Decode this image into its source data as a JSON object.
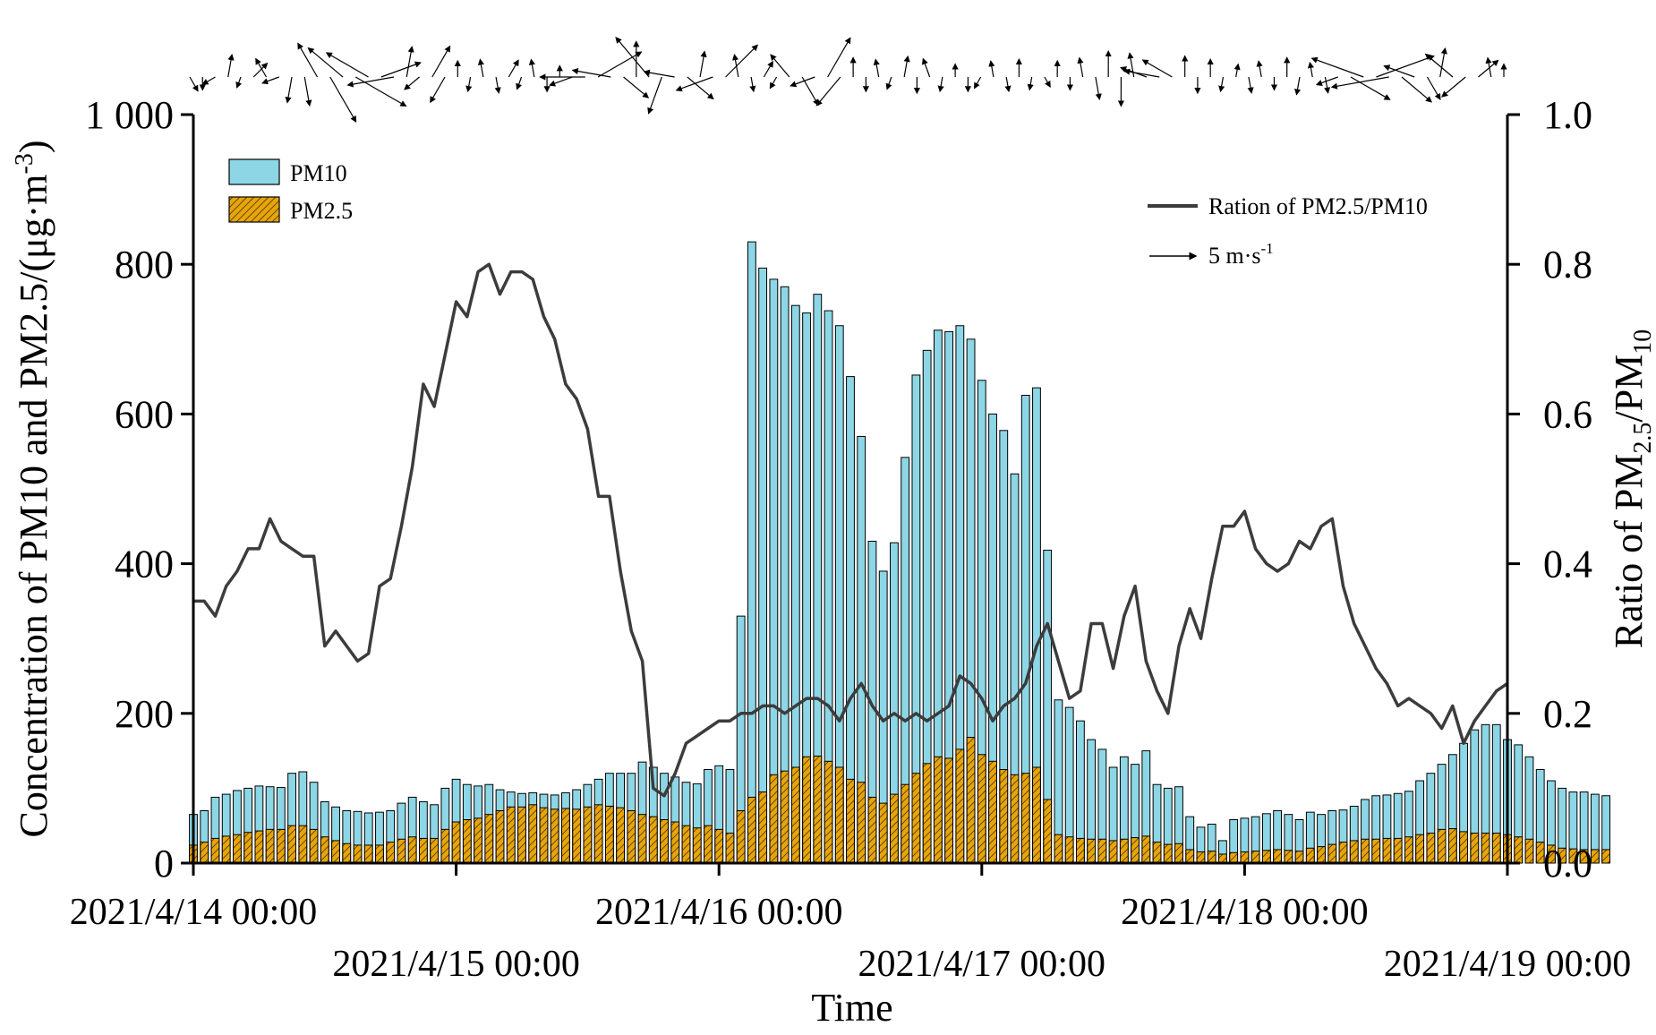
{
  "chart_data": {
    "type": "bar",
    "xlabel": "Time",
    "ylabel": "Concentration of PM10 and PM2.5/(μg·m⁻³)",
    "ylabel_parts": {
      "main": "Concentration of PM10 and PM2.5/(μg·m",
      "sup": "-3",
      "close": ")"
    },
    "y2label_parts": {
      "prefix": "Ratio of PM",
      "sub1": "2.5",
      "mid": "/PM",
      "sub2": "10"
    },
    "ylim": [
      0,
      1000
    ],
    "y2lim": [
      0,
      1.0
    ],
    "yticks": [
      "0",
      "200",
      "400",
      "600",
      "800",
      "1 000"
    ],
    "y2ticks": [
      "0.0",
      "0.2",
      "0.4",
      "0.6",
      "0.8",
      "1.0"
    ],
    "xlim_hours": [
      0,
      120
    ],
    "xtick_labels": [
      "2021/4/14 00:00",
      "2021/4/15 00:00",
      "2021/4/16 00:00",
      "2021/4/17 00:00",
      "2021/4/18 00:00",
      "2021/4/19 00:00"
    ],
    "legend": {
      "pm10": "PM10",
      "pm25": "PM2.5",
      "ratio": "Ration of PM2.5/PM10",
      "wind": "5 m·s",
      "wind_sup": "-1"
    },
    "colors": {
      "pm10": "#8dd6e6",
      "pm25": "#e6a50a",
      "ratio": "#3c3c3c"
    },
    "series": [
      {
        "name": "PM10",
        "values": [
          65,
          70,
          88,
          92,
          97,
          100,
          103,
          102,
          101,
          120,
          122,
          108,
          82,
          75,
          70,
          69,
          67,
          68,
          70,
          80,
          88,
          82,
          78,
          100,
          112,
          105,
          103,
          105,
          98,
          95,
          93,
          94,
          92,
          91,
          94,
          98,
          105,
          112,
          120,
          120,
          120,
          135,
          128,
          120,
          115,
          108,
          106,
          125,
          130,
          125,
          330,
          830,
          795,
          780,
          770,
          745,
          735,
          760,
          738,
          718,
          650,
          570,
          430,
          390,
          428,
          542,
          652,
          685,
          712,
          710,
          718,
          700,
          645,
          600,
          578,
          520,
          625,
          635,
          418,
          218,
          208,
          190,
          165,
          152,
          128,
          142,
          132,
          150,
          105,
          100,
          102,
          62,
          48,
          52,
          30,
          58,
          60,
          62,
          66,
          70,
          65,
          58,
          68,
          65,
          70,
          71,
          76,
          85,
          90,
          91,
          93,
          96,
          110,
          120,
          132,
          145,
          160,
          178,
          185,
          185,
          165,
          158,
          142,
          125,
          110,
          100,
          95,
          95,
          92,
          90
        ]
      },
      {
        "name": "PM2.5",
        "values": [
          24,
          28,
          33,
          36,
          38,
          41,
          43,
          45,
          45,
          50,
          50,
          45,
          35,
          30,
          26,
          24,
          24,
          24,
          28,
          32,
          35,
          33,
          33,
          45,
          55,
          58,
          60,
          65,
          70,
          75,
          75,
          78,
          74,
          72,
          73,
          72,
          75,
          78,
          76,
          74,
          70,
          65,
          62,
          58,
          55,
          50,
          47,
          50,
          45,
          40,
          70,
          88,
          95,
          118,
          123,
          128,
          142,
          143,
          136,
          128,
          112,
          108,
          88,
          80,
          92,
          105,
          120,
          133,
          142,
          140,
          152,
          168,
          145,
          136,
          125,
          118,
          120,
          128,
          85,
          38,
          35,
          33,
          32,
          32,
          30,
          32,
          34,
          36,
          28,
          25,
          26,
          18,
          15,
          16,
          12,
          14,
          15,
          16,
          17,
          18,
          17,
          16,
          20,
          22,
          25,
          28,
          30,
          32,
          32,
          33,
          33,
          35,
          38,
          40,
          45,
          46,
          42,
          40,
          40,
          40,
          38,
          35,
          32,
          28,
          24,
          20,
          19,
          18,
          18,
          18
        ]
      },
      {
        "name": "Ration of PM2.5/PM10",
        "values": [
          0.35,
          0.35,
          0.33,
          0.37,
          0.39,
          0.42,
          0.42,
          0.46,
          0.43,
          0.42,
          0.41,
          0.41,
          0.29,
          0.31,
          0.29,
          0.27,
          0.28,
          0.37,
          0.38,
          0.45,
          0.53,
          0.64,
          0.61,
          0.68,
          0.75,
          0.73,
          0.79,
          0.8,
          0.76,
          0.79,
          0.79,
          0.78,
          0.73,
          0.7,
          0.64,
          0.62,
          0.58,
          0.49,
          0.49,
          0.39,
          0.31,
          0.27,
          0.1,
          0.09,
          0.12,
          0.16,
          0.17,
          0.18,
          0.19,
          0.19,
          0.2,
          0.2,
          0.21,
          0.21,
          0.2,
          0.21,
          0.22,
          0.22,
          0.21,
          0.19,
          0.22,
          0.24,
          0.21,
          0.19,
          0.2,
          0.19,
          0.2,
          0.19,
          0.2,
          0.21,
          0.25,
          0.24,
          0.22,
          0.19,
          0.21,
          0.22,
          0.24,
          0.29,
          0.32,
          0.27,
          0.22,
          0.23,
          0.32,
          0.32,
          0.26,
          0.33,
          0.37,
          0.27,
          0.23,
          0.2,
          0.29,
          0.34,
          0.3,
          0.38,
          0.45,
          0.45,
          0.47,
          0.42,
          0.4,
          0.39,
          0.4,
          0.43,
          0.42,
          0.45,
          0.46,
          0.37,
          0.32,
          0.29,
          0.26,
          0.24,
          0.21,
          0.22,
          0.21,
          0.2,
          0.18,
          0.21,
          0.16,
          0.19,
          0.21,
          0.23,
          0.24
        ]
      }
    ],
    "wind_vectors": [
      {
        "h": 0,
        "dir": 300,
        "speed": 1.0
      },
      {
        "h": 1,
        "dir": 270,
        "speed": 0.8
      },
      {
        "h": 2,
        "dir": 210,
        "speed": 0.9
      },
      {
        "h": 3,
        "dir": 80,
        "speed": 1.4
      },
      {
        "h": 4,
        "dir": 250,
        "speed": 0.7
      },
      {
        "h": 5,
        "dir": 45,
        "speed": 1.2
      },
      {
        "h": 6,
        "dir": 120,
        "speed": 1.3
      },
      {
        "h": 7,
        "dir": 200,
        "speed": 1.1
      },
      {
        "h": 8,
        "dir": 260,
        "speed": 1.6
      },
      {
        "h": 9,
        "dir": 280,
        "speed": 1.8
      },
      {
        "h": 10,
        "dir": 120,
        "speed": 2.4
      },
      {
        "h": 11,
        "dir": 300,
        "speed": 3.2
      },
      {
        "h": 12,
        "dir": 140,
        "speed": 2.8
      },
      {
        "h": 13,
        "dir": 330,
        "speed": 3.6
      },
      {
        "h": 14,
        "dir": 150,
        "speed": 3.0
      },
      {
        "h": 15,
        "dir": 20,
        "speed": 2.6
      },
      {
        "h": 16,
        "dir": 190,
        "speed": 2.9
      },
      {
        "h": 17,
        "dir": 80,
        "speed": 1.9
      },
      {
        "h": 18,
        "dir": 220,
        "speed": 1.2
      },
      {
        "h": 19,
        "dir": 60,
        "speed": 2.2
      },
      {
        "h": 20,
        "dir": 240,
        "speed": 1.8
      },
      {
        "h": 21,
        "dir": 90,
        "speed": 1.0
      },
      {
        "h": 22,
        "dir": 260,
        "speed": 0.9
      },
      {
        "h": 23,
        "dir": 100,
        "speed": 1.1
      },
      {
        "h": 24,
        "dir": 280,
        "speed": 1.0
      },
      {
        "h": 25,
        "dir": 60,
        "speed": 1.2
      },
      {
        "h": 26,
        "dir": 250,
        "speed": 0.8
      },
      {
        "h": 27,
        "dir": 100,
        "speed": 1.1
      },
      {
        "h": 28,
        "dir": 270,
        "speed": 0.9
      },
      {
        "h": 29,
        "dir": 90,
        "speed": 0.7
      },
      {
        "h": 30,
        "dir": 200,
        "speed": 1.5
      },
      {
        "h": 31,
        "dir": 180,
        "speed": 2.8
      },
      {
        "h": 32,
        "dir": 30,
        "speed": 3.1
      },
      {
        "h": 33,
        "dir": 170,
        "speed": 2.4
      },
      {
        "h": 34,
        "dir": 320,
        "speed": 2.0
      },
      {
        "h": 35,
        "dir": 90,
        "speed": 2.2
      },
      {
        "h": 36,
        "dir": 130,
        "speed": 3.2
      },
      {
        "h": 37,
        "dir": 250,
        "speed": 2.4
      },
      {
        "h": 38,
        "dir": 170,
        "speed": 1.9
      },
      {
        "h": 39,
        "dir": 320,
        "speed": 2.1
      },
      {
        "h": 40,
        "dir": 80,
        "speed": 1.6
      },
      {
        "h": 41,
        "dir": 200,
        "speed": 2.4
      },
      {
        "h": 42,
        "dir": 45,
        "speed": 2.8
      },
      {
        "h": 43,
        "dir": 100,
        "speed": 1.4
      },
      {
        "h": 44,
        "dir": 280,
        "speed": 0.9
      },
      {
        "h": 45,
        "dir": 60,
        "speed": 1.1
      },
      {
        "h": 46,
        "dir": 240,
        "speed": 0.8
      },
      {
        "h": 47,
        "dir": 130,
        "speed": 1.8
      },
      {
        "h": 48,
        "dir": 300,
        "speed": 2.0
      },
      {
        "h": 49,
        "dir": 200,
        "speed": 1.6
      },
      {
        "h": 50,
        "dir": 60,
        "speed": 2.8
      },
      {
        "h": 51,
        "dir": 230,
        "speed": 2.3
      },
      {
        "h": 52,
        "dir": 90,
        "speed": 1.2
      },
      {
        "h": 53,
        "dir": 270,
        "speed": 0.9
      },
      {
        "h": 54,
        "dir": 100,
        "speed": 1.1
      },
      {
        "h": 55,
        "dir": 250,
        "speed": 0.8
      },
      {
        "h": 56,
        "dir": 80,
        "speed": 1.3
      },
      {
        "h": 57,
        "dir": 270,
        "speed": 1.0
      },
      {
        "h": 58,
        "dir": 110,
        "speed": 1.2
      },
      {
        "h": 59,
        "dir": 260,
        "speed": 0.9
      },
      {
        "h": 60,
        "dir": 90,
        "speed": 0.8
      },
      {
        "h": 61,
        "dir": 270,
        "speed": 0.9
      },
      {
        "h": 62,
        "dir": 240,
        "speed": 0.8
      },
      {
        "h": 63,
        "dir": 100,
        "speed": 1.0
      },
      {
        "h": 64,
        "dir": 280,
        "speed": 0.9
      },
      {
        "h": 65,
        "dir": 90,
        "speed": 1.1
      },
      {
        "h": 66,
        "dir": 260,
        "speed": 0.8
      },
      {
        "h": 67,
        "dir": 300,
        "speed": 0.7
      },
      {
        "h": 68,
        "dir": 90,
        "speed": 1.0
      },
      {
        "h": 69,
        "dir": 270,
        "speed": 0.8
      },
      {
        "h": 70,
        "dir": 100,
        "speed": 1.2
      },
      {
        "h": 71,
        "dir": 280,
        "speed": 1.4
      },
      {
        "h": 72,
        "dir": 90,
        "speed": 1.6
      },
      {
        "h": 73,
        "dir": 270,
        "speed": 1.8
      },
      {
        "h": 74,
        "dir": 100,
        "speed": 1.5
      },
      {
        "h": 75,
        "dir": 160,
        "speed": 1.7
      },
      {
        "h": 76,
        "dir": 170,
        "speed": 2.2
      },
      {
        "h": 77,
        "dir": 150,
        "speed": 2.1
      },
      {
        "h": 78,
        "dir": 90,
        "speed": 1.3
      },
      {
        "h": 79,
        "dir": 270,
        "speed": 1.0
      },
      {
        "h": 80,
        "dir": 90,
        "speed": 1.1
      },
      {
        "h": 81,
        "dir": 260,
        "speed": 0.9
      },
      {
        "h": 82,
        "dir": 80,
        "speed": 0.8
      },
      {
        "h": 83,
        "dir": 280,
        "speed": 1.0
      },
      {
        "h": 84,
        "dir": 100,
        "speed": 1.0
      },
      {
        "h": 85,
        "dir": 270,
        "speed": 0.8
      },
      {
        "h": 86,
        "dir": 90,
        "speed": 1.2
      },
      {
        "h": 87,
        "dir": 260,
        "speed": 1.1
      },
      {
        "h": 88,
        "dir": 100,
        "speed": 0.9
      },
      {
        "h": 89,
        "dir": 280,
        "speed": 1.0
      },
      {
        "h": 90,
        "dir": 200,
        "speed": 1.4
      },
      {
        "h": 91,
        "dir": 330,
        "speed": 2.8
      },
      {
        "h": 92,
        "dir": 160,
        "speed": 3.4
      },
      {
        "h": 93,
        "dir": 20,
        "speed": 3.8
      },
      {
        "h": 94,
        "dir": 190,
        "speed": 3.6
      },
      {
        "h": 95,
        "dir": 320,
        "speed": 2.4
      },
      {
        "h": 96,
        "dir": 160,
        "speed": 2.0
      },
      {
        "h": 97,
        "dir": 300,
        "speed": 1.6
      },
      {
        "h": 98,
        "dir": 80,
        "speed": 1.8
      },
      {
        "h": 99,
        "dir": 140,
        "speed": 2.2
      },
      {
        "h": 100,
        "dir": 220,
        "speed": 1.9
      },
      {
        "h": 101,
        "dir": 40,
        "speed": 1.6
      },
      {
        "h": 102,
        "dir": 100,
        "speed": 1.2
      },
      {
        "h": 103,
        "dir": 90,
        "speed": 0.8
      }
    ]
  }
}
